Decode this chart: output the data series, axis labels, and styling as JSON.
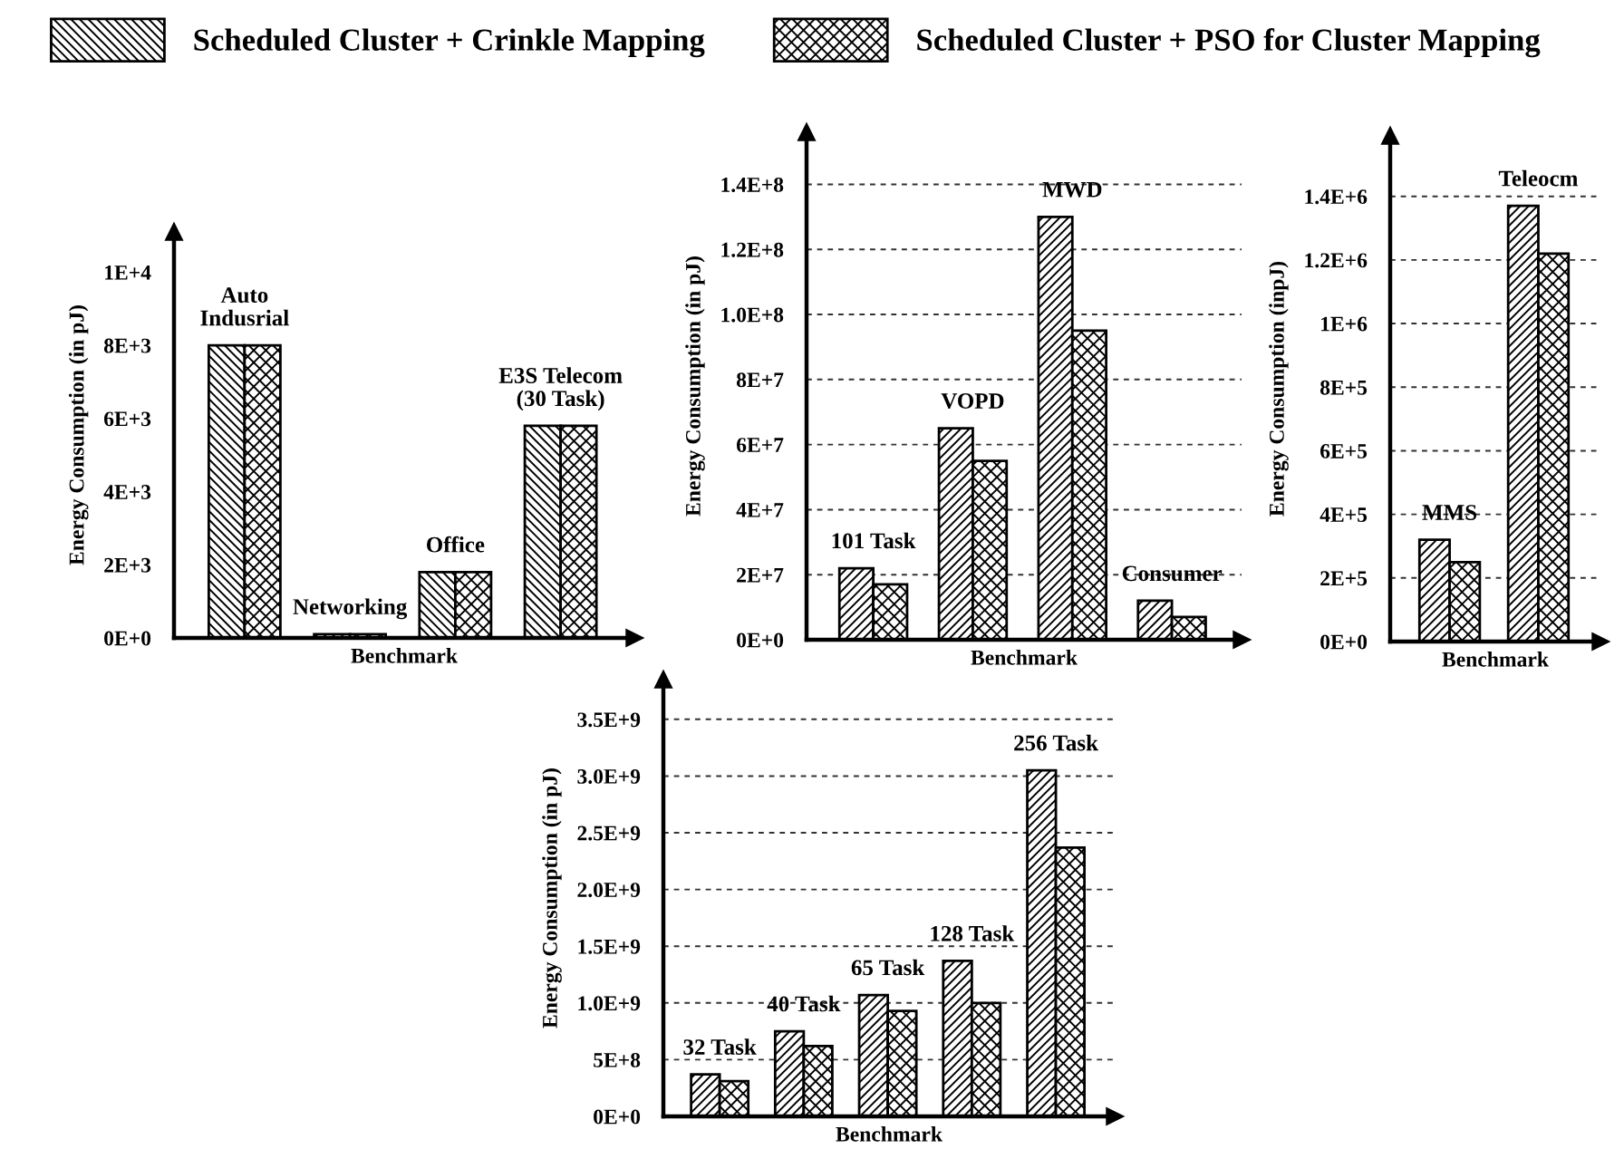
{
  "chart_data": [
    {
      "type": "bar",
      "categories": [
        "Auto\nIndusrial",
        "Networking",
        "Office",
        "E3S Telecom\n(30 Task)"
      ],
      "series": [
        {
          "name": "Scheduled Cluster + Crinkle Mapping",
          "color": "#000000",
          "values": [
            8000,
            100,
            1800,
            5800
          ]
        },
        {
          "name": "Scheduled Cluster + PSO for Cluster Mapping",
          "color": "#000000",
          "values": [
            8000,
            100,
            1800,
            5800
          ]
        }
      ],
      "xlabel": "Benchmark",
      "ylabel": "Energy Consumption (in pJ)",
      "ylim": [
        0,
        11100
      ],
      "yticks": [
        {
          "value": 0,
          "label": "0E+0"
        },
        {
          "value": 2000,
          "label": "2E+3"
        },
        {
          "value": 4000,
          "label": "4E+3"
        },
        {
          "value": 6000,
          "label": "6E+3"
        },
        {
          "value": 8000,
          "label": "8E+3"
        },
        {
          "value": 10000,
          "label": "1E+4"
        }
      ],
      "grid": false,
      "legend": "top"
    },
    {
      "type": "bar",
      "categories": [
        "101 Task",
        "VOPD",
        "MWD",
        "Consumer"
      ],
      "series": [
        {
          "color": "#000000",
          "values": [
            22000000,
            65000000,
            130000000,
            12000000
          ]
        },
        {
          "color": "#000000",
          "values": [
            17000000,
            55000000,
            95000000,
            7000000
          ]
        }
      ],
      "xlabel": "Benchmark",
      "ylabel": "Energy Consumption (in pJ)",
      "ylim": [
        0,
        156000000
      ],
      "yticks": [
        {
          "value": 0,
          "label": "0E+0"
        },
        {
          "value": 20000000,
          "label": "2E+7"
        },
        {
          "value": 40000000,
          "label": "4E+7"
        },
        {
          "value": 60000000,
          "label": "6E+7"
        },
        {
          "value": 80000000,
          "label": "8E+7"
        },
        {
          "value": 100000000,
          "label": "1.0E+8"
        },
        {
          "value": 120000000,
          "label": "1.2E+8"
        },
        {
          "value": 140000000,
          "label": "1.4E+8"
        }
      ],
      "grid": "y"
    },
    {
      "type": "bar",
      "categories": [
        "MMS",
        "Teleocm"
      ],
      "series": [
        {
          "color": "#000000",
          "values": [
            320000,
            1370000
          ]
        },
        {
          "color": "#000000",
          "values": [
            250000,
            1220000
          ]
        }
      ],
      "xlabel": "Benchmark",
      "ylabel": "Energy Consumption (inpJ)",
      "ylim": [
        0,
        1590000
      ],
      "yticks": [
        {
          "value": 0,
          "label": "0E+0"
        },
        {
          "value": 200000,
          "label": "2E+5"
        },
        {
          "value": 400000,
          "label": "4E+5"
        },
        {
          "value": 600000,
          "label": "6E+5"
        },
        {
          "value": 800000,
          "label": "8E+5"
        },
        {
          "value": 1000000,
          "label": "1E+6"
        },
        {
          "value": 1200000,
          "label": "1.2E+6"
        },
        {
          "value": 1400000,
          "label": "1.4E+6"
        }
      ],
      "grid": "y"
    },
    {
      "type": "bar",
      "categories": [
        "32 Task",
        "40 Task",
        "65 Task",
        "128 Task",
        "256 Task"
      ],
      "series": [
        {
          "color": "#000000",
          "values": [
            370000000,
            750000000,
            1070000000,
            1370000000,
            3050000000
          ]
        },
        {
          "color": "#000000",
          "values": [
            310000000,
            620000000,
            930000000,
            1000000000,
            2370000000
          ]
        }
      ],
      "xlabel": "Benchmark",
      "ylabel": "Energy Consumption (in pJ)",
      "ylim": [
        0,
        3850000000
      ],
      "yticks": [
        {
          "value": 0,
          "label": "0E+0"
        },
        {
          "value": 500000000,
          "label": "5E+8"
        },
        {
          "value": 1000000000,
          "label": "1.0E+9"
        },
        {
          "value": 1500000000,
          "label": "1.5E+9"
        },
        {
          "value": 2000000000,
          "label": "2.0E+9"
        },
        {
          "value": 2500000000,
          "label": "2.5E+9"
        },
        {
          "value": 3000000000,
          "label": "3.0E+9"
        },
        {
          "value": 3500000000,
          "label": "3.5E+9"
        }
      ],
      "grid": "y"
    }
  ]
}
